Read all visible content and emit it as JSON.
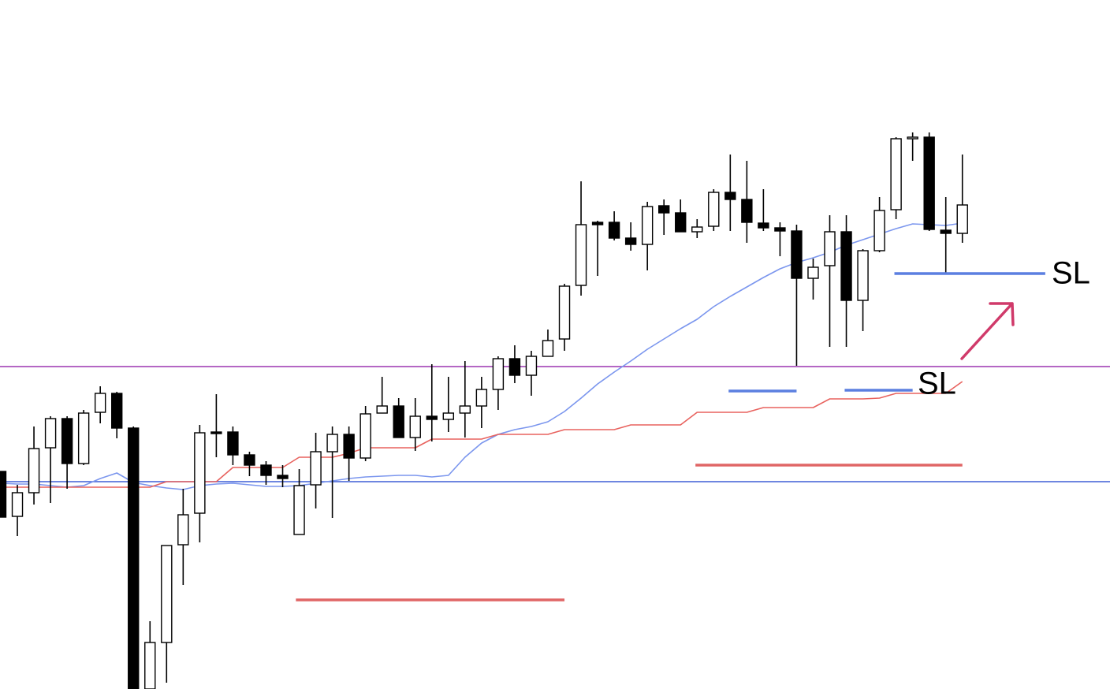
{
  "chart_data": {
    "type": "candlestick",
    "ylim": [
      0,
      874
    ],
    "up_color": "#ffffff",
    "down_color": "#000000",
    "open": [
      276,
      219,
      249,
      306,
      343,
      286,
      351,
      375,
      331,
      0,
      59,
      183,
      223,
      326,
      326,
      297,
      284,
      271,
      196,
      259,
      301,
      323,
      293,
      350,
      359,
      319,
      346,
      342,
      350,
      359,
      380,
      419,
      398,
      422,
      444,
      512,
      592,
      592,
      572,
      564,
      613,
      604,
      580,
      587,
      630,
      621,
      591,
      585,
      581,
      521,
      537,
      580,
      493,
      556,
      608,
      698,
      700,
      582,
      578
    ],
    "high": [
      276,
      259,
      333,
      346,
      346,
      354,
      384,
      377,
      333,
      86,
      182,
      254,
      335,
      374,
      333,
      301,
      289,
      284,
      279,
      325,
      333,
      333,
      359,
      396,
      369,
      369,
      412,
      396,
      416,
      396,
      422,
      436,
      429,
      456,
      514,
      644,
      594,
      606,
      592,
      618,
      621,
      621,
      596,
      634,
      678,
      670,
      634,
      592,
      589,
      546,
      601,
      601,
      558,
      624,
      700,
      706,
      706,
      624,
      678
    ],
    "low": [
      218,
      194,
      234,
      236,
      254,
      284,
      337,
      318,
      0,
      0,
      8,
      132,
      186,
      294,
      284,
      270,
      259,
      256,
      196,
      229,
      217,
      264,
      289,
      350,
      319,
      302,
      314,
      326,
      319,
      331,
      354,
      388,
      372,
      422,
      429,
      499,
      524,
      569,
      556,
      531,
      576,
      580,
      572,
      581,
      581,
      566,
      581,
      549,
      410,
      494,
      434,
      434,
      454,
      554,
      596,
      670,
      581,
      527,
      566
    ],
    "close": [
      218,
      249,
      305,
      343,
      286,
      350,
      375,
      331,
      0,
      59,
      182,
      221,
      325,
      324,
      297,
      284,
      271,
      267,
      258,
      301,
      323,
      293,
      349,
      359,
      319,
      346,
      342,
      350,
      359,
      380,
      419,
      398,
      422,
      442,
      511,
      589,
      589,
      572,
      564,
      612,
      604,
      580,
      586,
      630,
      621,
      592,
      585,
      581,
      521,
      535,
      580,
      493,
      556,
      607,
      698,
      700,
      583,
      578,
      614
    ],
    "series": [
      {
        "color": "#7b96ee",
        "values": [
          261,
          260,
          260,
          258,
          256,
          258,
          267,
          274,
          262,
          258,
          255,
          253,
          258,
          260,
          261,
          259,
          257,
          257,
          258,
          261,
          264,
          267,
          269,
          270,
          271,
          271,
          269,
          271,
          294,
          312,
          323,
          329,
          333,
          339,
          352,
          369,
          387,
          402,
          416,
          431,
          444,
          457,
          469,
          485,
          498,
          510,
          522,
          533,
          541,
          547,
          554,
          563,
          570,
          577,
          584,
          590,
          589,
          588,
          591
        ]
      },
      {
        "color": "#e8625e",
        "values": [
          256,
          256,
          256,
          256,
          256,
          256,
          256,
          256,
          256,
          256,
          263,
          263,
          263,
          263,
          281,
          281,
          281,
          281,
          294,
          294,
          294,
          299,
          306,
          306,
          306,
          306,
          317,
          317,
          317,
          317,
          323,
          323,
          323,
          323,
          329,
          329,
          329,
          329,
          335,
          335,
          335,
          335,
          351,
          351,
          351,
          351,
          357,
          357,
          357,
          357,
          368,
          368,
          368,
          369,
          375,
          375,
          375,
          375,
          390
        ]
      }
    ],
    "hlines": [
      {
        "value": 409,
        "color": "#9b35b0"
      },
      {
        "value": 263,
        "color": "#3f5fd6"
      }
    ],
    "segments": [
      {
        "value": 113,
        "x": [
          17.8,
          34.0
        ],
        "color": "#e06666"
      },
      {
        "value": 284,
        "x": [
          41.9,
          58.0
        ],
        "color": "#e06666"
      },
      {
        "value": 527,
        "x": [
          53.9,
          63.0
        ],
        "color": "#5b7fe0"
      },
      {
        "value": 378,
        "x": [
          43.9,
          48.0
        ],
        "color": "#5b7fe0"
      },
      {
        "value": 379,
        "x": [
          50.9,
          55.0
        ],
        "color": "#5b7fe0"
      }
    ],
    "annotations": [
      "SL",
      "SL"
    ]
  }
}
